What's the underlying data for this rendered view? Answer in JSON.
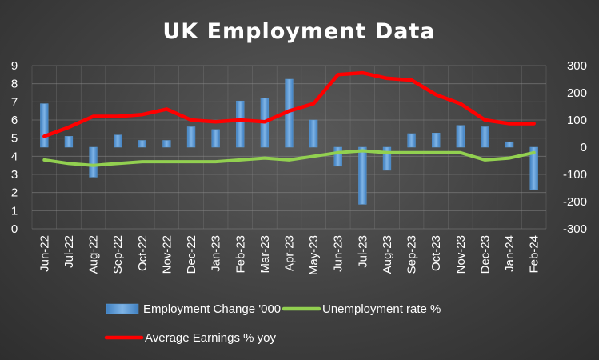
{
  "chart_data": {
    "type": "bar",
    "title": "UK Employment Data",
    "categories": [
      "Jun-22",
      "Jul-22",
      "Aug-22",
      "Sep-22",
      "Oct-22",
      "Nov-22",
      "Dec-22",
      "Jan-23",
      "Feb-23",
      "Mar-23",
      "Apr-23",
      "May-23",
      "Jun-23",
      "Jul-23",
      "Aug-23",
      "Sep-23",
      "Oct-23",
      "Nov-23",
      "Dec-23",
      "Jan-24",
      "Feb-24"
    ],
    "y_left": {
      "range": [
        0,
        9
      ],
      "ticks": [
        "0",
        "1",
        "2",
        "3",
        "4",
        "5",
        "6",
        "7",
        "8",
        "9"
      ]
    },
    "y_right": {
      "range": [
        -300,
        300
      ],
      "ticks": [
        "300",
        "200",
        "100",
        "0",
        "-100",
        "-200",
        "-300"
      ]
    },
    "grid": true,
    "legend_position": "bottom",
    "series": [
      {
        "name": "Employment Change '000",
        "kind": "bar",
        "axis": "right",
        "color": "#5b9bd5",
        "values": [
          160,
          40,
          -110,
          45,
          25,
          25,
          75,
          65,
          170,
          180,
          250,
          100,
          -70,
          -210,
          -85,
          50,
          52,
          80,
          75,
          20,
          -155
        ]
      },
      {
        "name": "Unemployment rate %",
        "kind": "line",
        "axis": "left",
        "color": "#92d050",
        "values": [
          3.8,
          3.6,
          3.5,
          3.6,
          3.7,
          3.7,
          3.7,
          3.7,
          3.8,
          3.9,
          3.8,
          4.0,
          4.2,
          4.3,
          4.2,
          4.2,
          4.2,
          4.2,
          3.8,
          3.9,
          4.2
        ]
      },
      {
        "name": "Average Earnings % yoy",
        "kind": "line",
        "axis": "left",
        "color": "#ff0000",
        "values": [
          5.1,
          5.6,
          6.2,
          6.2,
          6.3,
          6.6,
          6.0,
          5.9,
          6.0,
          5.9,
          6.5,
          6.9,
          8.5,
          8.6,
          8.3,
          8.2,
          7.4,
          6.9,
          6.0,
          5.8,
          5.8
        ]
      }
    ]
  }
}
